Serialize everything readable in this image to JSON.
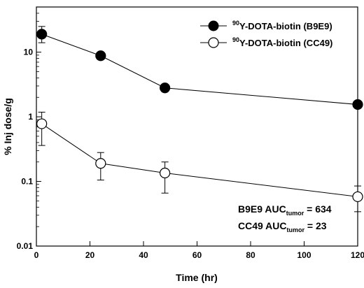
{
  "chart_data": {
    "type": "scatter",
    "xlabel": "Time (hr)",
    "ylabel": "% Inj dose/g",
    "xlim": [
      0,
      120
    ],
    "ylim": [
      0.01,
      50
    ],
    "yscale": "log",
    "x_ticks": [
      "0",
      "20",
      "40",
      "60",
      "80",
      "100",
      "120"
    ],
    "y_ticks": [
      "0.01",
      "0.1",
      "1",
      "10"
    ],
    "grid": false,
    "legend_position": "top-right",
    "series": [
      {
        "name_sup": "90",
        "name_main": "Y-DOTA-biotin (B9E9)",
        "marker": "filled-circle",
        "color": "#000000",
        "x": [
          2,
          24,
          48,
          120
        ],
        "y": [
          19,
          8.8,
          2.8,
          1.55
        ],
        "err_low": [
          14,
          8.8,
          2.8,
          1.55
        ],
        "err_high": [
          25,
          8.8,
          2.8,
          1.55
        ]
      },
      {
        "name_sup": "90",
        "name_main": "Y-DOTA-biotin (CC49)",
        "marker": "open-circle",
        "color": "#000000",
        "x": [
          2,
          24,
          48,
          120
        ],
        "y": [
          0.78,
          0.19,
          0.135,
          0.058
        ],
        "err_low": [
          0.36,
          0.105,
          0.066,
          0.034
        ],
        "err_high": [
          1.18,
          0.28,
          0.2,
          0.085
        ]
      }
    ],
    "annotations": [
      {
        "pre": "B9E9 AUC",
        "sub": "tumor",
        "post": " = 634"
      },
      {
        "pre": "CC49 AUC",
        "sub": "tumor",
        "post": " = 23"
      }
    ]
  }
}
